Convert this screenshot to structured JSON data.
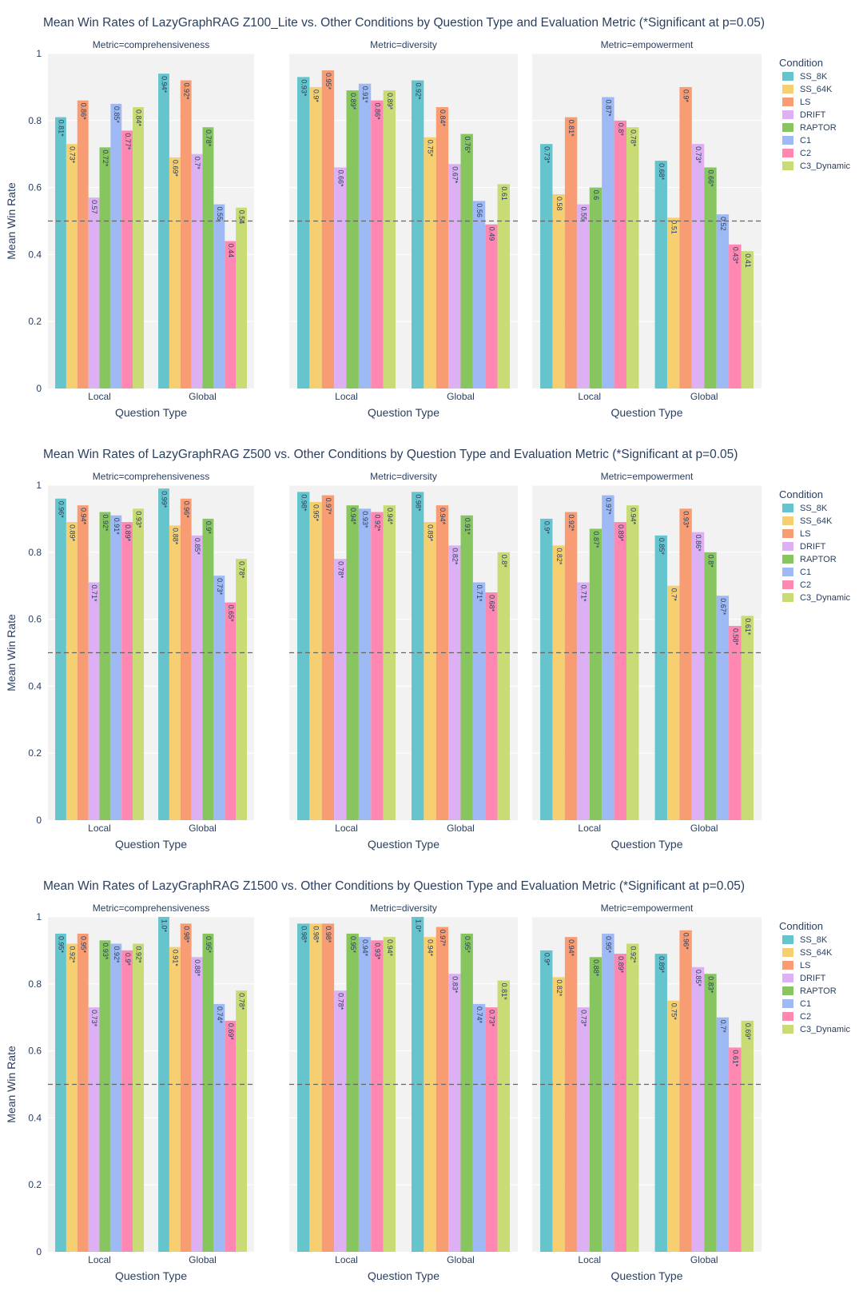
{
  "legend_title": "Condition",
  "conditions": [
    "SS_8K",
    "SS_64K",
    "LS",
    "DRIFT",
    "RAPTOR",
    "C1",
    "C2",
    "C3_Dynamic"
  ],
  "condition_colors": [
    "#66c5cc",
    "#f6cf71",
    "#f89c74",
    "#dcb0f2",
    "#87c55f",
    "#9eb9f3",
    "#fe88b1",
    "#c9db74"
  ],
  "reference_line": 0.5,
  "chart_data": [
    {
      "type": "bar",
      "title": "Mean Win Rates of LazyGraphRAG Z100_Lite vs. Other Conditions by Question Type and Evaluation Metric (*Significant at p=0.05)",
      "ylabel": "Mean Win Rate",
      "xlabel": "Question Type",
      "ylim": [
        0,
        1
      ],
      "yticks": [
        "0",
        "0.2",
        "0.4",
        "0.6",
        "0.8",
        "1"
      ],
      "categories": [
        "Local",
        "Global"
      ],
      "facets": [
        {
          "metric": "Metric=comprehensiveness",
          "values": [
            [
              0.81,
              0.73,
              0.86,
              0.57,
              0.72,
              0.85,
              0.77,
              0.84
            ],
            [
              0.94,
              0.69,
              0.92,
              0.7,
              0.78,
              0.55,
              0.44,
              0.54
            ]
          ],
          "labels": [
            [
              "0.81*",
              "0.73*",
              "0.86*",
              "0.57",
              "0.72*",
              "0.85*",
              "0.77*",
              "0.84*"
            ],
            [
              "0.94*",
              "0.69*",
              "0.92*",
              "0.7*",
              "0.78*",
              "0.55",
              "0.44",
              "0.54"
            ]
          ]
        },
        {
          "metric": "Metric=diversity",
          "values": [
            [
              0.93,
              0.9,
              0.95,
              0.66,
              0.89,
              0.91,
              0.86,
              0.89
            ],
            [
              0.92,
              0.75,
              0.84,
              0.67,
              0.76,
              0.56,
              0.49,
              0.61
            ]
          ],
          "labels": [
            [
              "0.93*",
              "0.9*",
              "0.95*",
              "0.66*",
              "0.89*",
              "0.91*",
              "0.86*",
              "0.89*"
            ],
            [
              "0.92*",
              "0.75*",
              "0.84*",
              "0.67*",
              "0.76*",
              "0.56",
              "0.49",
              "0.61"
            ]
          ]
        },
        {
          "metric": "Metric=empowerment",
          "values": [
            [
              0.73,
              0.58,
              0.81,
              0.55,
              0.6,
              0.87,
              0.8,
              0.78
            ],
            [
              0.68,
              0.51,
              0.9,
              0.73,
              0.66,
              0.52,
              0.43,
              0.41
            ]
          ],
          "labels": [
            [
              "0.73*",
              "0.58",
              "0.81*",
              "0.55",
              "0.6",
              "0.87*",
              "0.8*",
              "0.78*"
            ],
            [
              "0.68*",
              "0.51",
              "0.9*",
              "0.73*",
              "0.66*",
              "0.52",
              "0.43*",
              "0.41"
            ]
          ]
        }
      ]
    },
    {
      "type": "bar",
      "title": "Mean Win Rates of LazyGraphRAG Z500 vs. Other Conditions by Question Type and Evaluation Metric (*Significant at p=0.05)",
      "ylabel": "Mean Win Rate",
      "xlabel": "Question Type",
      "ylim": [
        0,
        1
      ],
      "yticks": [
        "0",
        "0.2",
        "0.4",
        "0.6",
        "0.8",
        "1"
      ],
      "categories": [
        "Local",
        "Global"
      ],
      "facets": [
        {
          "metric": "Metric=comprehensiveness",
          "values": [
            [
              0.96,
              0.89,
              0.94,
              0.71,
              0.92,
              0.91,
              0.89,
              0.93
            ],
            [
              0.99,
              0.88,
              0.96,
              0.85,
              0.9,
              0.73,
              0.65,
              0.78
            ]
          ],
          "labels": [
            [
              "0.96*",
              "0.89*",
              "0.94*",
              "0.71*",
              "0.92*",
              "0.91*",
              "0.89*",
              "0.93*"
            ],
            [
              "0.99*",
              "0.88*",
              "0.96*",
              "0.85*",
              "0.9*",
              "0.73*",
              "0.65*",
              "0.78*"
            ]
          ]
        },
        {
          "metric": "Metric=diversity",
          "values": [
            [
              0.98,
              0.95,
              0.97,
              0.78,
              0.94,
              0.93,
              0.92,
              0.94
            ],
            [
              0.98,
              0.89,
              0.94,
              0.82,
              0.91,
              0.71,
              0.68,
              0.8
            ]
          ],
          "labels": [
            [
              "0.98*",
              "0.95*",
              "0.97*",
              "0.78*",
              "0.94*",
              "0.93*",
              "0.92*",
              "0.94*"
            ],
            [
              "0.98*",
              "0.89*",
              "0.94*",
              "0.82*",
              "0.91*",
              "0.71*",
              "0.68*",
              "0.8*"
            ]
          ]
        },
        {
          "metric": "Metric=empowerment",
          "values": [
            [
              0.9,
              0.82,
              0.92,
              0.71,
              0.87,
              0.97,
              0.89,
              0.94
            ],
            [
              0.85,
              0.7,
              0.93,
              0.86,
              0.8,
              0.67,
              0.58,
              0.61
            ]
          ],
          "labels": [
            [
              "0.9*",
              "0.82*",
              "0.92*",
              "0.71*",
              "0.87*",
              "0.97*",
              "0.89*",
              "0.94*"
            ],
            [
              "0.85*",
              "0.7*",
              "0.93*",
              "0.86*",
              "0.8*",
              "0.67*",
              "0.58*",
              "0.61*"
            ]
          ]
        }
      ]
    },
    {
      "type": "bar",
      "title": "Mean Win Rates of LazyGraphRAG Z1500 vs. Other Conditions by Question Type and Evaluation Metric (*Significant at p=0.05)",
      "ylabel": "Mean Win Rate",
      "xlabel": "Question Type",
      "ylim": [
        0,
        1
      ],
      "yticks": [
        "0",
        "0.2",
        "0.4",
        "0.6",
        "0.8",
        "1"
      ],
      "categories": [
        "Local",
        "Global"
      ],
      "facets": [
        {
          "metric": "Metric=comprehensiveness",
          "values": [
            [
              0.95,
              0.92,
              0.95,
              0.73,
              0.93,
              0.92,
              0.9,
              0.92
            ],
            [
              1.0,
              0.91,
              0.98,
              0.88,
              0.95,
              0.74,
              0.69,
              0.78
            ]
          ],
          "labels": [
            [
              "0.95*",
              "0.92*",
              "0.95*",
              "0.73*",
              "0.93*",
              "0.92*",
              "0.9*",
              "0.92*"
            ],
            [
              "1.0*",
              "0.91*",
              "0.98*",
              "0.88*",
              "0.95*",
              "0.74*",
              "0.69*",
              "0.78*"
            ]
          ]
        },
        {
          "metric": "Metric=diversity",
          "values": [
            [
              0.98,
              0.98,
              0.98,
              0.78,
              0.95,
              0.94,
              0.93,
              0.94
            ],
            [
              1.0,
              0.94,
              0.97,
              0.83,
              0.95,
              0.74,
              0.73,
              0.81
            ]
          ],
          "labels": [
            [
              "0.98*",
              "0.98*",
              "0.98*",
              "0.78*",
              "0.95*",
              "0.94*",
              "0.93*",
              "0.94*"
            ],
            [
              "1.0*",
              "0.94*",
              "0.97*",
              "0.83*",
              "0.95*",
              "0.74*",
              "0.73*",
              "0.81*"
            ]
          ]
        },
        {
          "metric": "Metric=empowerment",
          "values": [
            [
              0.9,
              0.82,
              0.94,
              0.73,
              0.88,
              0.95,
              0.89,
              0.92
            ],
            [
              0.89,
              0.75,
              0.96,
              0.85,
              0.83,
              0.7,
              0.61,
              0.69
            ]
          ],
          "labels": [
            [
              "0.9*",
              "0.82*",
              "0.94*",
              "0.73*",
              "0.88*",
              "0.95*",
              "0.89*",
              "0.92*"
            ],
            [
              "0.89*",
              "0.75*",
              "0.96*",
              "0.85*",
              "0.83*",
              "0.7*",
              "0.61*",
              "0.69*"
            ]
          ]
        }
      ]
    }
  ]
}
